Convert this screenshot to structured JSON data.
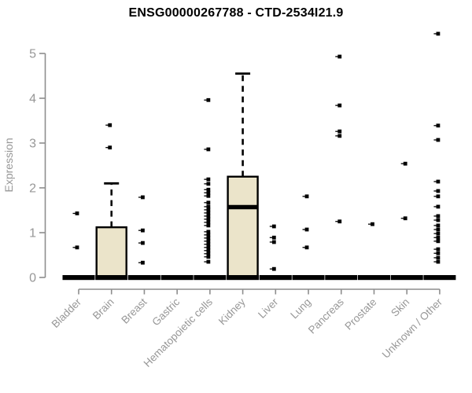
{
  "chart_data": {
    "type": "boxplot",
    "title": "ENSG00000267788 - CTD-2534I21.9",
    "ylabel": "Expression",
    "ylim": [
      0,
      5
    ],
    "yticks": [
      0,
      1,
      2,
      3,
      4,
      5
    ],
    "grid": false,
    "categories": [
      "Bladder",
      "Brain",
      "Breast",
      "Gastric",
      "Hematopoietic cells",
      "Kidney",
      "Liver",
      "Lung",
      "Pancreas",
      "Prostate",
      "Skin",
      "Unknown / Other"
    ],
    "series": [
      {
        "name": "Bladder",
        "q1": 0,
        "median": 0,
        "q3": 0,
        "whisker_low": 0,
        "whisker_high": 0,
        "outliers": [
          1.43,
          0.67
        ]
      },
      {
        "name": "Brain",
        "q1": 0,
        "median": 0,
        "q3": 1.12,
        "whisker_low": 0,
        "whisker_high": 2.1,
        "outliers": [
          3.4,
          2.9
        ]
      },
      {
        "name": "Breast",
        "q1": 0,
        "median": 0,
        "q3": 0,
        "whisker_low": 0,
        "whisker_high": 0,
        "outliers": [
          1.79,
          1.05,
          0.77,
          0.33
        ]
      },
      {
        "name": "Gastric",
        "q1": 0,
        "median": 0,
        "q3": 0,
        "whisker_low": 0,
        "whisker_high": 0,
        "outliers": []
      },
      {
        "name": "Hematopoietic cells",
        "q1": 0,
        "median": 0,
        "q3": 0,
        "whisker_low": 0,
        "whisker_high": 0,
        "outliers": [
          3.96,
          2.86,
          2.19,
          2.09,
          1.96,
          1.89,
          1.82,
          1.67,
          1.58,
          1.51,
          1.44,
          1.37,
          1.3,
          1.23,
          1.16,
          1.02,
          0.95,
          0.88,
          0.81,
          0.74,
          0.67,
          0.6,
          0.53,
          0.46,
          0.35
        ]
      },
      {
        "name": "Kidney",
        "q1": 0,
        "median": 1.57,
        "q3": 2.25,
        "whisker_low": 0,
        "whisker_high": 4.55,
        "outliers": []
      },
      {
        "name": "Liver",
        "q1": 0,
        "median": 0,
        "q3": 0,
        "whisker_low": 0,
        "whisker_high": 0,
        "outliers": [
          1.14,
          0.89,
          0.79,
          0.19
        ]
      },
      {
        "name": "Lung",
        "q1": 0,
        "median": 0,
        "q3": 0,
        "whisker_low": 0,
        "whisker_high": 0,
        "outliers": [
          1.81,
          1.07,
          0.67
        ]
      },
      {
        "name": "Pancreas",
        "q1": 0,
        "median": 0,
        "q3": 0,
        "whisker_low": 0,
        "whisker_high": 0,
        "outliers": [
          4.93,
          3.84,
          3.26,
          3.16,
          1.25
        ]
      },
      {
        "name": "Prostate",
        "q1": 0,
        "median": 0,
        "q3": 0,
        "whisker_low": 0,
        "whisker_high": 0,
        "outliers": [
          1.19
        ]
      },
      {
        "name": "Skin",
        "q1": 0,
        "median": 0,
        "q3": 0,
        "whisker_low": 0,
        "whisker_high": 0,
        "outliers": [
          2.54,
          1.32
        ]
      },
      {
        "name": "Unknown / Other",
        "q1": 0,
        "median": 0,
        "q3": 0,
        "whisker_low": 0,
        "whisker_high": 0,
        "outliers": [
          5.44,
          3.39,
          3.07,
          2.14,
          1.93,
          1.81,
          1.58,
          1.37,
          1.28,
          1.16,
          1.07,
          0.98,
          0.89,
          0.81,
          0.63,
          0.54,
          0.44,
          0.35
        ]
      }
    ],
    "colors": {
      "box_fill": "#EBE4CA",
      "box_stroke": "#000000",
      "axis": "#8E8E8E",
      "tick_label": "#979797",
      "title": "#000000",
      "background": "#FFFFFF"
    },
    "legend": null
  }
}
